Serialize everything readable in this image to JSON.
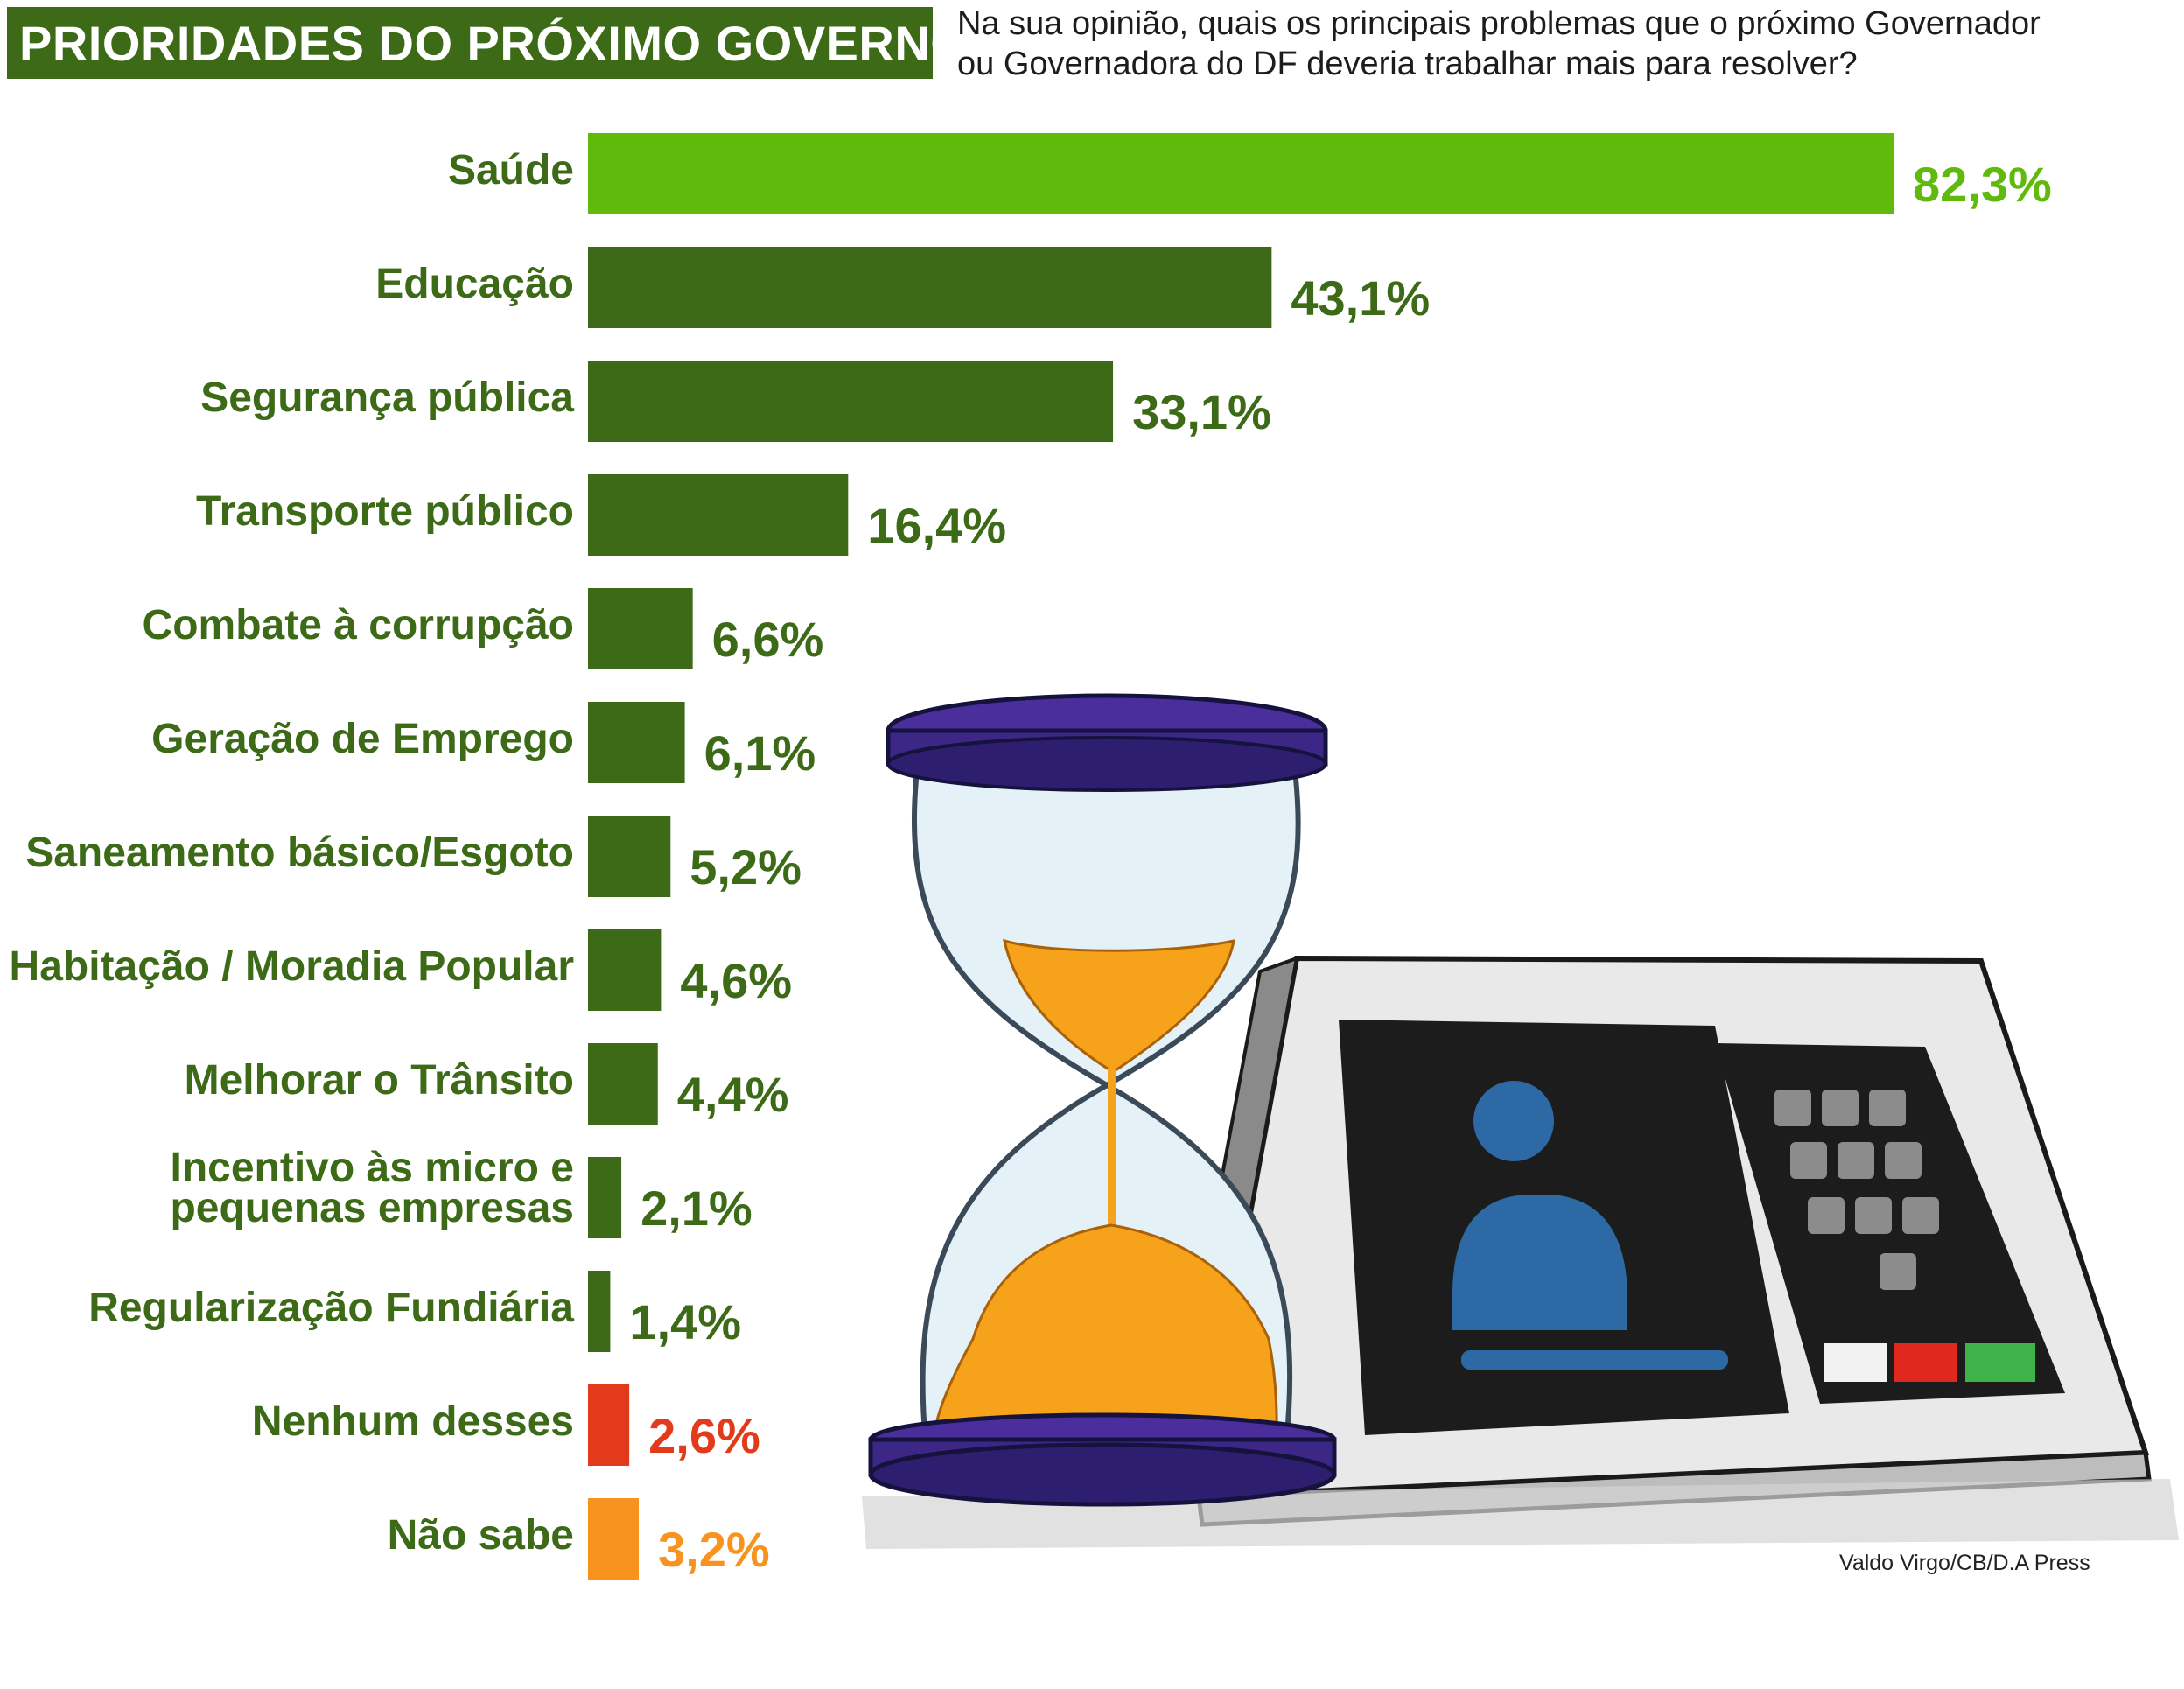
{
  "header": {
    "title": "PRIORIDADES DO PRÓXIMO GOVERNO",
    "question_line1": "Na sua opinião, quais os principais problemas que o próximo Governador",
    "question_line2": "ou Governadora do DF deveria trabalhar mais para resolver?"
  },
  "credit": "Valdo Virgo/CB/D.A Press",
  "colors": {
    "highlight": "#5fba0b",
    "main_bar": "#3c6a17",
    "none": "#e23a1a",
    "dont_know": "#f7931e",
    "title_bg": "#3c6a17"
  },
  "illustration": {
    "icons": [
      "hourglass-icon",
      "voting-machine-icon"
    ]
  },
  "chart_data": {
    "type": "bar",
    "orientation": "horizontal",
    "title": "PRIORIDADES DO PRÓXIMO GOVERNO",
    "xlabel": "",
    "ylabel": "",
    "categories": [
      "Saúde",
      "Educação",
      "Segurança pública",
      "Transporte público",
      "Combate à corrupção",
      "Geração de Emprego",
      "Saneamento básico/Esgoto",
      "Habitação / Moradia Popular",
      "Melhorar o Trânsito",
      [
        "Incentivo às micro e",
        "pequenas empresas"
      ],
      "Regularização Fundiária",
      "Nenhum desses",
      "Não sabe"
    ],
    "values": [
      82.3,
      43.1,
      33.1,
      16.4,
      6.6,
      6.1,
      5.2,
      4.6,
      4.4,
      2.1,
      1.4,
      2.6,
      3.2
    ],
    "value_labels": [
      "82,3%",
      "43,1%",
      "33,1%",
      "16,4%",
      "6,6%",
      "6,1%",
      "5,2%",
      "4,6%",
      "4,4%",
      "2,1%",
      "1,4%",
      "2,6%",
      "3,2%"
    ],
    "bar_colors": [
      "#5fba0b",
      "#3c6a17",
      "#3c6a17",
      "#3c6a17",
      "#3c6a17",
      "#3c6a17",
      "#3c6a17",
      "#3c6a17",
      "#3c6a17",
      "#3c6a17",
      "#3c6a17",
      "#e23a1a",
      "#f7931e"
    ],
    "xlim": [
      0,
      82.3
    ],
    "grid": false,
    "legend": "none"
  }
}
